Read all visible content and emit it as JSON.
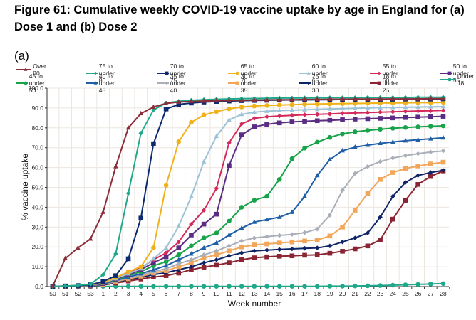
{
  "title": "Figure 61: Cumulative weekly COVID-19 vaccine uptake by age in England for (a) Dose 1 and (b) Dose 2",
  "panel_label": "(a)",
  "chart_data": {
    "type": "line",
    "title": "Figure 61: Cumulative weekly COVID-19 vaccine uptake by age in England for (a) Dose 1 and (b) Dose 2",
    "xlabel": "Week number",
    "ylabel": "% vaccine uptake",
    "ylim": [
      0,
      100
    ],
    "yticks": [
      "0.0",
      "10.0",
      "20.0",
      "30.0",
      "40.0",
      "50.0",
      "60.0",
      "70.0",
      "80.0",
      "90.0",
      "100.0"
    ],
    "grid": true,
    "legend_position": "top",
    "categories": [
      "50",
      "51",
      "52",
      "53",
      "1",
      "2",
      "3",
      "4",
      "5",
      "6",
      "7",
      "8",
      "9",
      "10",
      "11",
      "12",
      "13",
      "14",
      "15",
      "16",
      "17",
      "18",
      "19",
      "20",
      "21",
      "22",
      "23",
      "24",
      "25",
      "26",
      "27",
      "28"
    ],
    "series": [
      {
        "name": "Over 80",
        "color": "#8B2E3B",
        "marker": "triangle",
        "values": [
          0.3,
          14.2,
          19.5,
          24.0,
          37.5,
          60.5,
          80.0,
          87.2,
          90.5,
          92.3,
          93.0,
          93.3,
          93.5,
          93.7,
          93.8,
          93.9,
          94.0,
          94.1,
          94.2,
          94.2,
          94.3,
          94.3,
          94.4,
          94.4,
          94.5,
          94.5,
          94.5,
          94.6,
          94.6,
          94.6,
          94.7,
          94.7
        ]
      },
      {
        "name": "75 to under 80",
        "color": "#1FA88A",
        "marker": "diamond",
        "values": [
          0.1,
          0.3,
          0.6,
          1.2,
          6.0,
          16.5,
          47.0,
          77.3,
          89.0,
          92.5,
          93.4,
          93.9,
          94.2,
          94.4,
          94.6,
          94.7,
          94.8,
          94.9,
          95.0,
          95.0,
          95.1,
          95.1,
          95.2,
          95.2,
          95.2,
          95.3,
          95.3,
          95.3,
          95.3,
          95.4,
          95.4,
          95.4
        ]
      },
      {
        "name": "70 to under 75",
        "color": "#0B2A6F",
        "marker": "square",
        "values": [
          0.1,
          0.3,
          0.5,
          0.9,
          2.5,
          5.5,
          14.0,
          34.5,
          72.0,
          89.5,
          91.8,
          92.5,
          93.0,
          93.3,
          93.5,
          93.7,
          93.8,
          93.9,
          94.0,
          94.1,
          94.1,
          94.2,
          94.2,
          94.3,
          94.3,
          94.4,
          94.4,
          94.4,
          94.5,
          94.5,
          94.5,
          94.6
        ]
      },
      {
        "name": "65 to under 70",
        "color": "#F0B21A",
        "marker": "circle",
        "values": [
          0.1,
          0.2,
          0.4,
          0.8,
          2.0,
          4.5,
          7.5,
          10.0,
          19.5,
          51.0,
          73.0,
          82.8,
          86.5,
          88.2,
          89.6,
          90.5,
          91.0,
          91.3,
          91.5,
          91.7,
          91.9,
          92.0,
          92.1,
          92.2,
          92.3,
          92.4,
          92.5,
          92.5,
          92.6,
          92.7,
          92.7,
          92.8
        ]
      },
      {
        "name": "60 to under 65",
        "color": "#9DC3D6",
        "marker": "triangle",
        "values": [
          0.1,
          0.2,
          0.4,
          0.7,
          1.8,
          4.0,
          6.5,
          9.0,
          14.0,
          19.5,
          30.5,
          45.5,
          63.0,
          75.8,
          84.0,
          86.8,
          87.9,
          88.4,
          88.7,
          88.9,
          89.1,
          89.3,
          89.5,
          89.7,
          89.9,
          90.0,
          90.2,
          90.3,
          90.4,
          90.5,
          90.6,
          90.7
        ]
      },
      {
        "name": "55 to under 60",
        "color": "#D42A5B",
        "marker": "diamond",
        "values": [
          0.1,
          0.2,
          0.4,
          0.7,
          1.7,
          4.0,
          6.5,
          9.5,
          13.5,
          17.0,
          22.5,
          31.5,
          38.5,
          49.5,
          72.5,
          82.0,
          84.8,
          85.6,
          86.0,
          86.3,
          86.6,
          86.8,
          87.0,
          87.3,
          87.5,
          87.7,
          87.9,
          88.1,
          88.3,
          88.5,
          88.6,
          88.8
        ]
      },
      {
        "name": "50 to under 55",
        "color": "#5B2C83",
        "marker": "square",
        "values": [
          0.1,
          0.2,
          0.3,
          0.6,
          1.6,
          3.8,
          6.0,
          8.5,
          12.0,
          15.0,
          19.5,
          26.0,
          31.5,
          36.5,
          61.0,
          76.5,
          80.5,
          81.8,
          82.5,
          83.0,
          83.3,
          83.6,
          83.8,
          84.1,
          84.4,
          84.6,
          84.8,
          85.0,
          85.2,
          85.4,
          85.6,
          85.8
        ]
      },
      {
        "name": "45 to under 50",
        "color": "#16A34A",
        "marker": "circle",
        "values": [
          0.1,
          0.2,
          0.3,
          0.6,
          1.5,
          3.5,
          5.5,
          7.5,
          10.5,
          12.5,
          16.0,
          20.5,
          24.5,
          27.0,
          33.0,
          40.0,
          43.5,
          45.5,
          54.0,
          64.5,
          69.8,
          72.8,
          75.2,
          77.0,
          78.0,
          78.7,
          79.3,
          79.8,
          80.2,
          80.5,
          80.8,
          81.0
        ]
      },
      {
        "name": "40 to under 45",
        "color": "#1F5FA8",
        "marker": "triangle",
        "values": [
          0.1,
          0.2,
          0.3,
          0.5,
          1.3,
          3.0,
          4.8,
          6.5,
          8.5,
          10.5,
          13.5,
          16.5,
          19.5,
          22.0,
          26.0,
          29.5,
          32.5,
          33.8,
          35.0,
          37.5,
          45.5,
          56.0,
          64.0,
          68.5,
          70.3,
          71.3,
          72.2,
          72.9,
          73.5,
          74.0,
          74.5,
          75.0
        ]
      },
      {
        "name": "35 to under 40",
        "color": "#A9AEB8",
        "marker": "diamond",
        "values": [
          0.1,
          0.2,
          0.3,
          0.5,
          1.2,
          2.7,
          4.3,
          5.8,
          7.5,
          9.0,
          11.5,
          13.5,
          16.0,
          18.0,
          20.5,
          23.0,
          24.5,
          25.2,
          25.8,
          26.3,
          27.2,
          29.0,
          36.0,
          48.5,
          57.0,
          60.5,
          63.0,
          64.8,
          66.0,
          67.0,
          67.8,
          68.4
        ]
      },
      {
        "name": "30 to under 35",
        "color": "#F2A65A",
        "marker": "square",
        "values": [
          0.1,
          0.2,
          0.3,
          0.5,
          1.1,
          2.5,
          3.9,
          5.2,
          6.8,
          8.0,
          10.0,
          12.0,
          14.5,
          16.0,
          18.0,
          20.0,
          21.0,
          21.5,
          22.0,
          22.5,
          23.0,
          23.5,
          25.5,
          30.0,
          38.5,
          47.0,
          54.0,
          57.5,
          59.5,
          60.8,
          61.8,
          62.7
        ]
      },
      {
        "name": "25 to under 30",
        "color": "#0E2466",
        "marker": "diamond",
        "values": [
          0.1,
          0.2,
          0.3,
          0.4,
          1.0,
          2.2,
          3.5,
          4.6,
          6.0,
          7.0,
          8.5,
          10.0,
          12.0,
          13.5,
          15.5,
          17.0,
          18.0,
          18.4,
          18.7,
          19.0,
          19.3,
          19.5,
          20.5,
          22.5,
          24.5,
          27.0,
          35.0,
          45.5,
          52.5,
          56.0,
          57.5,
          58.6
        ]
      },
      {
        "name": "18 to under 25",
        "color": "#8A2432",
        "marker": "square",
        "values": [
          0.1,
          0.1,
          0.2,
          0.3,
          0.8,
          1.8,
          2.8,
          3.8,
          4.8,
          5.5,
          6.8,
          8.5,
          9.8,
          10.8,
          12.0,
          13.5,
          14.5,
          15.0,
          15.3,
          15.5,
          15.8,
          16.0,
          16.8,
          17.8,
          19.0,
          20.5,
          23.5,
          34.0,
          43.5,
          51.5,
          55.5,
          58.3
        ]
      },
      {
        "name": "Under 18",
        "color": "#1FA88A",
        "marker": "circle",
        "values": [
          0.0,
          0.0,
          0.0,
          0.0,
          0.1,
          0.1,
          0.1,
          0.1,
          0.1,
          0.1,
          0.1,
          0.1,
          0.1,
          0.1,
          0.1,
          0.1,
          0.1,
          0.1,
          0.1,
          0.1,
          0.1,
          0.1,
          0.2,
          0.2,
          0.3,
          0.4,
          0.5,
          0.7,
          0.9,
          1.1,
          1.3,
          1.5
        ]
      }
    ]
  }
}
